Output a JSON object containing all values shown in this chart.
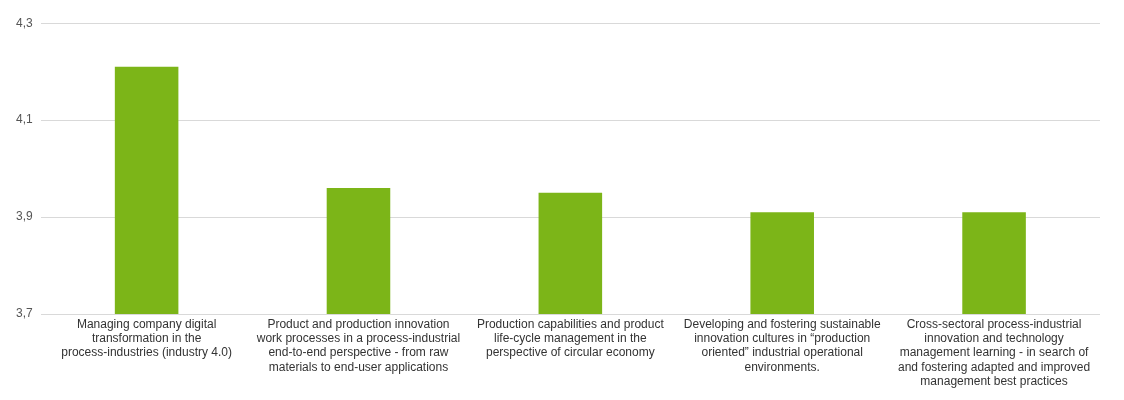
{
  "chart_data": {
    "type": "bar",
    "categories": [
      "Managing company digital transformation in the process-industries (industry 4.0)",
      "Product and production innovation work processes in a process-industrial end-to-end perspective - from raw materials to end-user applications",
      "Production capabilities and product life-cycle management in the perspective of circular economy",
      "Developing and fostering sustainable innovation cultures in “production oriented” industrial operational environments.",
      "Cross-sectoral process-industrial innovation and technology management learning - in search of and fostering adapted and improved management best practices"
    ],
    "values": [
      4.21,
      3.96,
      3.95,
      3.91,
      3.91
    ],
    "color": "#7cb518",
    "ylim": [
      3.7,
      4.3
    ],
    "yticks": [
      {
        "value": 3.7,
        "label": "3,7"
      },
      {
        "value": 3.9,
        "label": "3,9"
      },
      {
        "value": 4.1,
        "label": "4,1"
      },
      {
        "value": 4.3,
        "label": "4,3"
      }
    ],
    "grid": "y"
  }
}
